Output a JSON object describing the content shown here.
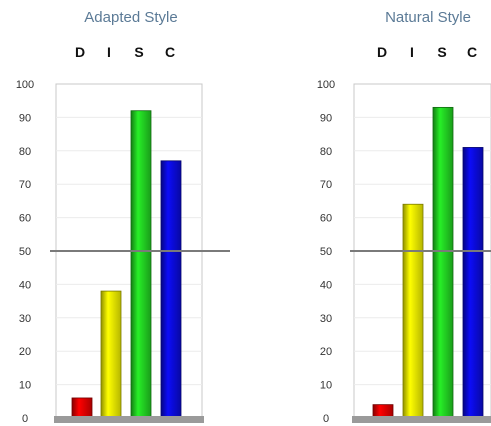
{
  "chart_data": [
    {
      "type": "bar",
      "title": "Adapted Style",
      "categories": [
        "D",
        "I",
        "S",
        "C"
      ],
      "values": [
        6,
        38,
        92,
        77
      ],
      "colors": [
        "#e00000",
        "#f2f200",
        "#22d022",
        "#0a0ad8"
      ],
      "ylim": [
        0,
        100
      ],
      "yticks": [
        "0",
        "10",
        "20",
        "30",
        "40",
        "50",
        "60",
        "70",
        "80",
        "90",
        "100"
      ],
      "reference_line": 50,
      "grid": true
    },
    {
      "type": "bar",
      "title": "Natural Style",
      "categories": [
        "D",
        "I",
        "S",
        "C"
      ],
      "values": [
        4,
        64,
        93,
        81
      ],
      "colors": [
        "#e00000",
        "#f2f200",
        "#22d022",
        "#0a0ad8"
      ],
      "ylim": [
        0,
        100
      ],
      "yticks": [
        "0",
        "10",
        "20",
        "30",
        "40",
        "50",
        "60",
        "70",
        "80",
        "90",
        "100"
      ],
      "reference_line": 50,
      "grid": true
    }
  ]
}
